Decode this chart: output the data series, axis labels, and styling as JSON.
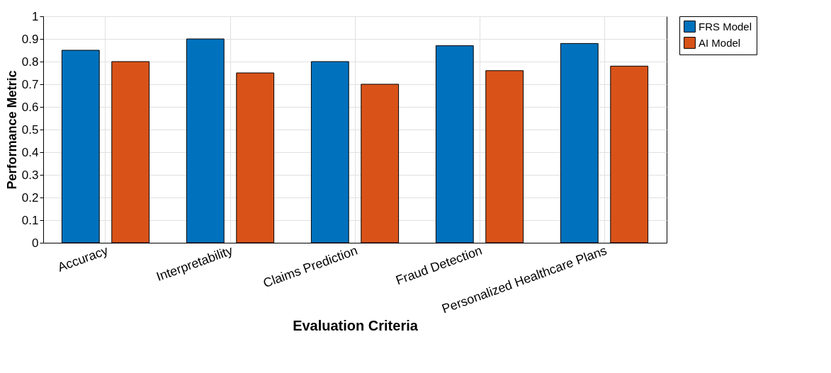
{
  "chart_data": {
    "type": "bar",
    "xlabel": "Evaluation Criteria",
    "ylabel": "Performance Metric",
    "categories": [
      "Accuracy",
      "Interpretability",
      "Claims Prediction",
      "Fraud Detection",
      "Personalized Healthcare Plans"
    ],
    "series": [
      {
        "name": "FRS Model",
        "color": "#0072bd",
        "values": [
          0.85,
          0.9,
          0.8,
          0.87,
          0.88
        ]
      },
      {
        "name": "AI Model",
        "color": "#d95319",
        "values": [
          0.8,
          0.75,
          0.7,
          0.76,
          0.78
        ]
      }
    ],
    "ylim": [
      0,
      1
    ],
    "yticks": [
      0,
      0.1,
      0.2,
      0.3,
      0.4,
      0.5,
      0.6,
      0.7,
      0.8,
      0.9,
      1
    ],
    "grid": true,
    "legend": "right"
  }
}
